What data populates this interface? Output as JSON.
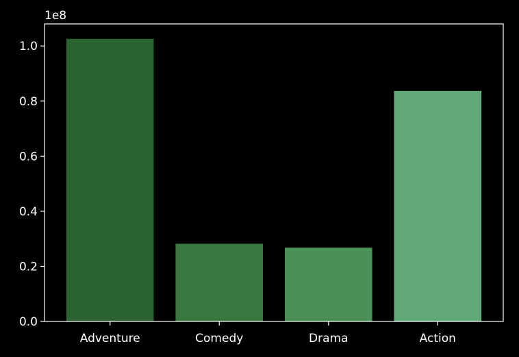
{
  "chart_data": {
    "type": "bar",
    "categories": [
      "Adventure",
      "Comedy",
      "Drama",
      "Action"
    ],
    "values": [
      102600000,
      28200000,
      26800000,
      83700000
    ],
    "colors": [
      "#2b6331",
      "#3a7a40",
      "#4a9157",
      "#62a97a"
    ],
    "title": "",
    "xlabel": "",
    "ylabel": "",
    "ylim": [
      0,
      108000000
    ],
    "yticks": [
      0,
      20000000,
      40000000,
      60000000,
      80000000,
      100000000
    ],
    "ytick_labels": [
      "0.0",
      "0.2",
      "0.4",
      "0.6",
      "0.8",
      "1.0"
    ],
    "y_offset_label": "1e8",
    "grid": false,
    "legend": "none",
    "background": "#000000",
    "axis_color": "#ffffff"
  }
}
